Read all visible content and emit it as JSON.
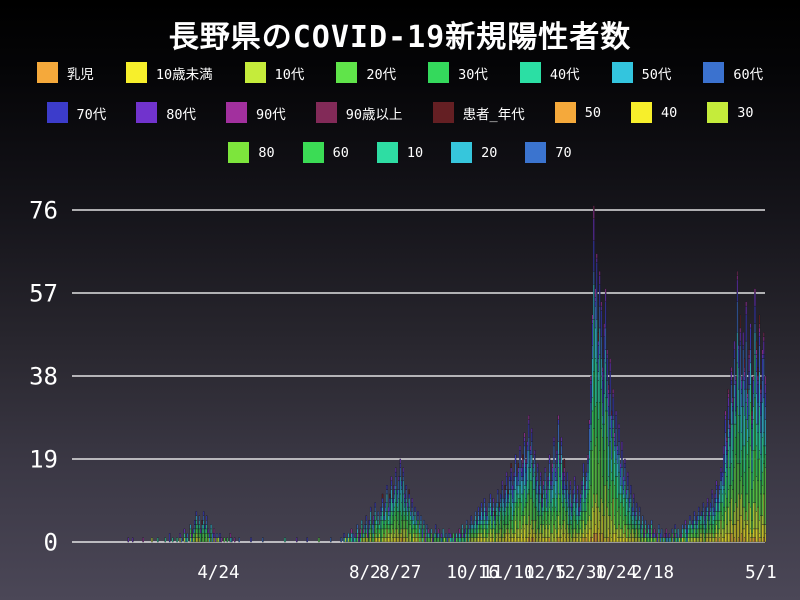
{
  "title": "長野県のCOVID-19新規陽性者数",
  "colors": {
    "background_top": "#000000",
    "background_bottom": "#4b4757",
    "gridline": "#f2f2f2",
    "text": "#ffffff"
  },
  "legend": {
    "rows": [
      [
        {
          "label": "乳児",
          "color": "#f5a93b"
        },
        {
          "label": "10歳未満",
          "color": "#f7ef2b"
        },
        {
          "label": "10代",
          "color": "#c5ec3b"
        },
        {
          "label": "20代",
          "color": "#60e44a"
        },
        {
          "label": "30代",
          "color": "#34d95c"
        },
        {
          "label": "40代",
          "color": "#2bdfa4"
        },
        {
          "label": "50代",
          "color": "#33c5de"
        },
        {
          "label": "60代",
          "color": "#3b72cf"
        }
      ],
      [
        {
          "label": "70代",
          "color": "#3c3ccb"
        },
        {
          "label": "80代",
          "color": "#7133cd"
        },
        {
          "label": "90代",
          "color": "#a2309e"
        },
        {
          "label": "90歳以上",
          "color": "#822a58"
        },
        {
          "label": "患者_年代",
          "color": "#641f23"
        },
        {
          "label": "50",
          "color": "#f5a93b"
        },
        {
          "label": "40",
          "color": "#f7ef2b"
        },
        {
          "label": "30",
          "color": "#c5ec3b"
        }
      ],
      [
        {
          "label": "80",
          "color": "#7de53c"
        },
        {
          "label": "60",
          "color": "#3bdc55"
        },
        {
          "label": "10",
          "color": "#2edda3"
        },
        {
          "label": "20",
          "color": "#36c6dc"
        },
        {
          "label": "70",
          "color": "#3b74cf"
        }
      ]
    ]
  },
  "chart_data": {
    "type": "bar",
    "subtype": "stacked-daily",
    "title": "長野県のCOVID-19新規陽性者数",
    "xlabel": "",
    "ylabel": "",
    "ylim": [
      0,
      79
    ],
    "y_ticks": [
      0,
      19,
      38,
      57,
      76
    ],
    "grid": "horizontal-white",
    "legend_position": "top",
    "x_ticks": [
      {
        "label": "4/24",
        "day": 73
      },
      {
        "label": "8/2",
        "day": 172
      },
      {
        "label": "8/27",
        "day": 196
      },
      {
        "label": "10/16",
        "day": 245
      },
      {
        "label": "11/10",
        "day": 269
      },
      {
        "label": "12/5",
        "day": 294
      },
      {
        "label": "12/30",
        "day": 318
      },
      {
        "label": "1/24",
        "day": 342
      },
      {
        "label": "2/18",
        "day": 367
      },
      {
        "label": "5/1",
        "day": 440
      }
    ],
    "series_stack_order": [
      "乳児",
      "10歳未満",
      "10代",
      "20代",
      "30代",
      "40代",
      "50代",
      "60代",
      "70代",
      "80代",
      "90代",
      "90歳以上",
      "患者_年代"
    ],
    "series_stack_colors": [
      "#f5a93b",
      "#f7ef2b",
      "#c5ec3b",
      "#60e44a",
      "#34d95c",
      "#2bdfa4",
      "#33c5de",
      "#3b72cf",
      "#3c3ccb",
      "#7133cd",
      "#a2309e",
      "#822a58",
      "#641f23"
    ],
    "daily_totals": [
      0,
      0,
      0,
      0,
      0,
      0,
      0,
      0,
      0,
      0,
      0,
      0,
      1,
      0,
      0,
      1,
      0,
      0,
      0,
      0,
      0,
      0,
      1,
      0,
      0,
      0,
      0,
      0,
      1,
      0,
      0,
      0,
      1,
      0,
      0,
      0,
      0,
      1,
      0,
      0,
      2,
      0,
      1,
      0,
      0,
      1,
      0,
      2,
      1,
      0,
      3,
      1,
      2,
      0,
      4,
      2,
      3,
      5,
      7,
      4,
      6,
      3,
      5,
      7,
      4,
      6,
      3,
      2,
      4,
      2,
      3,
      1,
      2,
      1,
      2,
      1,
      0,
      1,
      0,
      1,
      0,
      2,
      1,
      0,
      1,
      0,
      0,
      1,
      0,
      0,
      0,
      0,
      0,
      0,
      0,
      1,
      0,
      0,
      0,
      0,
      0,
      0,
      0,
      1,
      0,
      0,
      0,
      0,
      0,
      0,
      0,
      0,
      0,
      0,
      0,
      0,
      0,
      0,
      1,
      0,
      0,
      0,
      0,
      0,
      0,
      0,
      1,
      0,
      0,
      0,
      0,
      0,
      0,
      1,
      0,
      0,
      0,
      0,
      0,
      0,
      0,
      1,
      0,
      0,
      0,
      0,
      0,
      0,
      0,
      1,
      0,
      0,
      0,
      0,
      0,
      0,
      1,
      0,
      2,
      1,
      1,
      2,
      1,
      3,
      2,
      1,
      2,
      4,
      2,
      3,
      5,
      3,
      4,
      6,
      3,
      5,
      8,
      4,
      6,
      9,
      5,
      7,
      4,
      8,
      11,
      6,
      9,
      13,
      8,
      11,
      15,
      10,
      13,
      17,
      12,
      15,
      19,
      14,
      17,
      11,
      13,
      9,
      12,
      7,
      10,
      6,
      8,
      5,
      7,
      4,
      6,
      3,
      5,
      2,
      4,
      3,
      2,
      3,
      1,
      2,
      4,
      2,
      3,
      1,
      2,
      3,
      1,
      2,
      1,
      3,
      2,
      1,
      2,
      1,
      2,
      1,
      3,
      2,
      4,
      2,
      3,
      5,
      3,
      4,
      6,
      4,
      5,
      7,
      5,
      8,
      6,
      9,
      7,
      10,
      8,
      6,
      9,
      11,
      8,
      10,
      7,
      9,
      12,
      9,
      11,
      14,
      10,
      13,
      16,
      12,
      15,
      18,
      13,
      16,
      20,
      15,
      18,
      22,
      17,
      20,
      25,
      19,
      23,
      29,
      22,
      26,
      18,
      21,
      15,
      18,
      13,
      16,
      11,
      14,
      17,
      12,
      15,
      20,
      14,
      18,
      24,
      17,
      21,
      29,
      20,
      24,
      16,
      19,
      13,
      16,
      11,
      14,
      9,
      12,
      15,
      10,
      13,
      8,
      11,
      14,
      18,
      13,
      16,
      20,
      28,
      38,
      52,
      77,
      58,
      66,
      48,
      62,
      55,
      40,
      50,
      58,
      44,
      36,
      42,
      30,
      35,
      25,
      30,
      22,
      27,
      18,
      23,
      15,
      19,
      12,
      16,
      10,
      13,
      8,
      11,
      7,
      9,
      5,
      8,
      4,
      6,
      3,
      5,
      2,
      4,
      3,
      5,
      2,
      3,
      1,
      2,
      4,
      2,
      3,
      1,
      2,
      3,
      1,
      2,
      1,
      3,
      2,
      4,
      2,
      3,
      1,
      2,
      4,
      3,
      5,
      3,
      4,
      6,
      4,
      5,
      7,
      5,
      6,
      8,
      6,
      7,
      9,
      6,
      8,
      10,
      7,
      9,
      12,
      8,
      11,
      14,
      10,
      13,
      17,
      16,
      22,
      30,
      24,
      35,
      28,
      40,
      33,
      46,
      38,
      62,
      45,
      52,
      38,
      48,
      42,
      55,
      35,
      44,
      50,
      30,
      38,
      58,
      46,
      40,
      52,
      36,
      44,
      48,
      38
    ]
  }
}
